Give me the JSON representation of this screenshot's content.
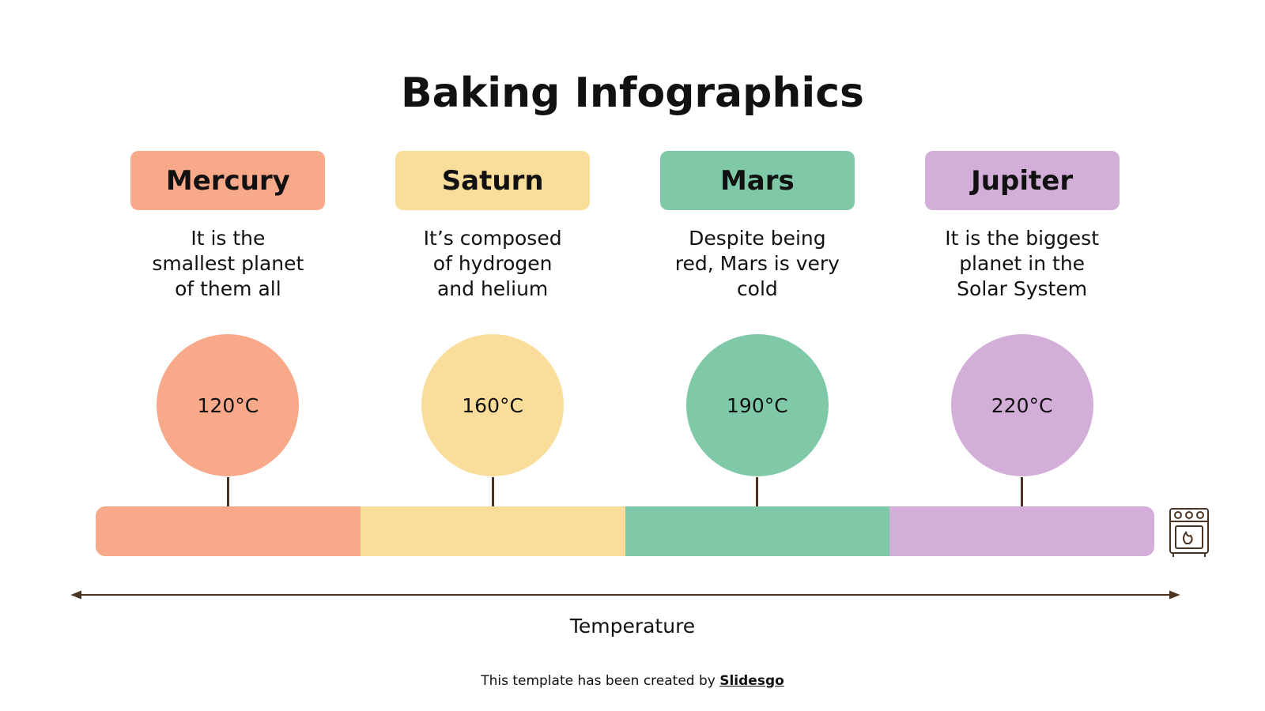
{
  "title": "Baking Infographics",
  "items": [
    {
      "name": "Mercury",
      "description": [
        "It is the",
        "smallest planet",
        "of them all"
      ],
      "temperature": "120°C"
    },
    {
      "name": "Saturn",
      "description": [
        "It’s composed",
        "of hydrogen",
        "and helium"
      ],
      "temperature": "160°C"
    },
    {
      "name": "Mars",
      "description": [
        "Despite being",
        "red, Mars is very",
        "cold"
      ],
      "temperature": "190°C"
    },
    {
      "name": "Jupiter",
      "description": [
        "It is the biggest",
        "planet in the",
        "Solar System"
      ],
      "temperature": "220°C"
    }
  ],
  "axis_label": "Temperature",
  "footer": {
    "text": "This template has been created by",
    "link": "Slidesgo"
  }
}
